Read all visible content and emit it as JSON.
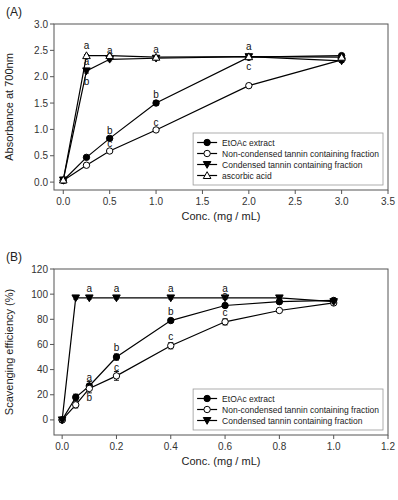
{
  "chart_data": [
    {
      "type": "line",
      "title": "(A)",
      "x_label": "Conc. (mg / mL)",
      "y_label": "Absorbance at 700nm",
      "xlim": [
        -0.1,
        3.5
      ],
      "ylim": [
        -0.15,
        3.0
      ],
      "xticks": [
        {
          "value": 0.0,
          "label": "0.0"
        },
        0.5,
        {
          "value": 1.0,
          "label": "1.0"
        },
        1.5,
        {
          "value": 2.0,
          "label": "2.0"
        },
        2.5,
        {
          "value": 3.0,
          "label": "3.0"
        },
        3.5
      ],
      "yticks": [
        {
          "value": 0.0,
          "label": "0.0"
        },
        0.5,
        {
          "value": 1.0,
          "label": "1.0"
        },
        1.5,
        {
          "value": 2.0,
          "label": "2.0"
        },
        2.5,
        {
          "value": 3.0,
          "label": "3.0"
        }
      ],
      "grid": false,
      "legend": "lower right",
      "series": [
        {
          "name": "EtOAc extract",
          "color": "black",
          "marker": "circle-filled",
          "line_style": "solid",
          "x": [
            0.0,
            0.25,
            0.5,
            1.0,
            2.0,
            3.0
          ],
          "values": [
            0.03,
            0.47,
            0.83,
            1.5,
            2.37,
            2.4
          ],
          "errors": [
            0.01,
            0.03,
            0.03,
            0.04,
            0.03,
            0.03
          ]
        },
        {
          "name": "Non-condensed tannin containing fraction",
          "color": "black",
          "marker": "circle-open",
          "line_style": "solid",
          "x": [
            0.0,
            0.25,
            0.5,
            1.0,
            2.0,
            3.0
          ],
          "values": [
            0.03,
            0.32,
            0.59,
            0.99,
            1.83,
            2.32
          ],
          "errors": [
            0.01,
            0.02,
            0.02,
            0.03,
            0.04,
            0.04
          ]
        },
        {
          "name": "Condensed tannin containing fraction",
          "color": "black",
          "marker": "triangle-down-filled",
          "line_style": "solid",
          "x": [
            0.0,
            0.25,
            0.5,
            1.0,
            2.0,
            3.0
          ],
          "values": [
            0.04,
            2.11,
            2.33,
            2.35,
            2.38,
            2.3
          ],
          "errors": [
            0.01,
            0.04,
            0.03,
            0.03,
            0.03,
            0.03
          ]
        },
        {
          "name": "ascorbic acid",
          "color": "black",
          "marker": "triangle-up-open",
          "line_style": "solid",
          "x": [
            0.0,
            0.25,
            0.5,
            1.0,
            2.0,
            3.0
          ],
          "values": [
            0.04,
            2.4,
            2.4,
            2.37,
            2.38,
            2.37
          ],
          "errors": [
            0.01,
            0.02,
            0.02,
            0.02,
            0.02,
            0.02
          ]
        }
      ],
      "annotations": [
        {
          "x": 0.25,
          "y": 2.5,
          "text": "a"
        },
        {
          "x": 0.25,
          "y": 2.2,
          "text": "a"
        },
        {
          "x": 0.25,
          "y": 1.82,
          "text": "b"
        },
        {
          "x": 0.5,
          "y": 2.42,
          "text": "a"
        },
        {
          "x": 0.5,
          "y": 0.9,
          "text": "b"
        },
        {
          "x": 0.5,
          "y": 0.64,
          "text": "c"
        },
        {
          "x": 1.0,
          "y": 2.44,
          "text": "a"
        },
        {
          "x": 1.0,
          "y": 1.58,
          "text": "b"
        },
        {
          "x": 1.0,
          "y": 1.05,
          "text": "c"
        },
        {
          "x": 2.0,
          "y": 2.48,
          "text": "a"
        },
        {
          "x": 2.0,
          "y": 2.1,
          "text": "c"
        }
      ]
    },
    {
      "type": "line",
      "title": "(B)",
      "x_label": "Conc. (mg / mL)",
      "y_label": "Scavenging efficiency (%)",
      "xlim": [
        -0.03,
        1.2
      ],
      "ylim": [
        -12,
        120
      ],
      "xticks": [
        {
          "value": 0.0,
          "label": "0.0"
        },
        0.2,
        0.4,
        0.6,
        0.8,
        {
          "value": 1.0,
          "label": "1.0"
        },
        1.2
      ],
      "yticks": [
        0,
        20,
        40,
        60,
        80,
        100,
        120
      ],
      "grid": false,
      "legend": "lower right",
      "series": [
        {
          "name": "EtOAc extract",
          "color": "black",
          "marker": "circle-filled",
          "line_style": "solid",
          "x": [
            0.0,
            0.05,
            0.1,
            0.2,
            0.4,
            0.6,
            0.8,
            1.0
          ],
          "values": [
            0.0,
            18.0,
            27.0,
            50.0,
            79.0,
            91.0,
            94.0,
            95.0
          ],
          "errors": [
            0.5,
            2.5,
            3.5,
            2.5,
            1.5,
            1.5,
            1.0,
            1.0
          ]
        },
        {
          "name": "Non-condensed tannin containing fraction",
          "color": "black",
          "marker": "circle-open",
          "line_style": "solid",
          "x": [
            0.0,
            0.05,
            0.1,
            0.2,
            0.4,
            0.6,
            0.8,
            1.0
          ],
          "values": [
            0.0,
            12.0,
            25.0,
            35.0,
            59.0,
            78.0,
            87.0,
            93.0
          ],
          "errors": [
            0.5,
            2.5,
            3.5,
            3.5,
            2.5,
            2.5,
            1.5,
            1.0
          ]
        },
        {
          "name": "Condensed tannin containing fraction",
          "color": "black",
          "marker": "triangle-down-filled",
          "line_style": "solid",
          "x": [
            0.0,
            0.05,
            0.1,
            0.2,
            0.4,
            0.6,
            0.8,
            1.0
          ],
          "values": [
            0.0,
            97.0,
            97.0,
            97.0,
            97.0,
            97.0,
            97.0,
            94.0
          ],
          "errors": [
            0.5,
            1.0,
            1.0,
            1.0,
            1.0,
            1.0,
            1.0,
            1.0
          ]
        }
      ],
      "annotations": [
        {
          "x": 0.1,
          "y": 101,
          "text": "a"
        },
        {
          "x": 0.1,
          "y": 30,
          "text": "a"
        },
        {
          "x": 0.1,
          "y": 14,
          "text": "b"
        },
        {
          "x": 0.2,
          "y": 101,
          "text": "a"
        },
        {
          "x": 0.2,
          "y": 54,
          "text": "b"
        },
        {
          "x": 0.2,
          "y": 38,
          "text": "c"
        },
        {
          "x": 0.4,
          "y": 101,
          "text": "a"
        },
        {
          "x": 0.4,
          "y": 83,
          "text": "b"
        },
        {
          "x": 0.4,
          "y": 63,
          "text": "c"
        },
        {
          "x": 0.6,
          "y": 101,
          "text": "a"
        },
        {
          "x": 0.6,
          "y": 95,
          "text": "a"
        },
        {
          "x": 0.6,
          "y": 82,
          "text": "c"
        }
      ]
    }
  ]
}
